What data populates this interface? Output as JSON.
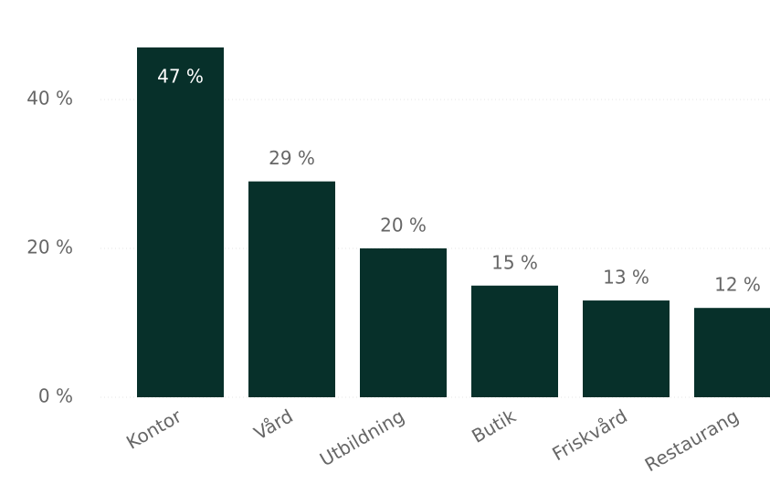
{
  "chart_data": {
    "type": "bar",
    "categories": [
      "Kontor",
      "Vård",
      "Utbildning",
      "Butik",
      "Friskvård",
      "Restaurang"
    ],
    "values": [
      47,
      29,
      20,
      15,
      13,
      12
    ],
    "value_labels": [
      "47 %",
      "29 %",
      "20 %",
      "15 %",
      "13 %",
      "12 %"
    ],
    "color": "#07302a",
    "ylim": [
      0,
      50
    ],
    "yticks": [
      {
        "value": 0,
        "label": "0 %"
      },
      {
        "value": 20,
        "label": "20 %"
      },
      {
        "value": 40,
        "label": "40 %"
      }
    ],
    "grid": true
  }
}
